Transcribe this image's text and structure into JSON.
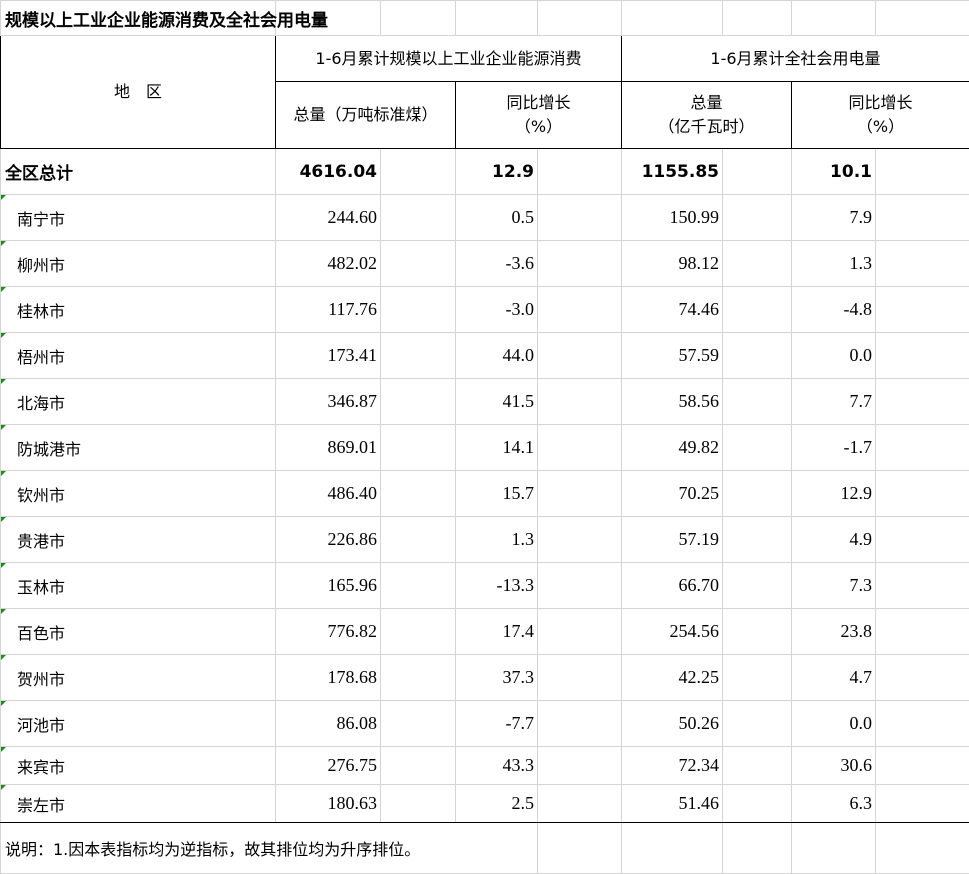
{
  "title": "规模以上工业企业能源消费及全社会用电量",
  "header": {
    "region": "地　区",
    "group_energy": "1-6月累计规模以上工业企业能源消费",
    "group_power": "1-6月累计全社会用电量",
    "energy_total": "总量（万吨标准煤）",
    "energy_growth_line1": "同比增长",
    "energy_growth_line2": "（%）",
    "power_total_line1": "总量",
    "power_total_line2": "（亿千瓦时）",
    "power_growth_line1": "同比增长",
    "power_growth_line2": "（%）"
  },
  "total": {
    "name": "全区总计",
    "energy": "4616.04",
    "energy_growth": "12.9",
    "power": "1155.85",
    "power_growth": "10.1"
  },
  "rows": [
    {
      "name": "南宁市",
      "energy": "244.60",
      "energy_growth": "0.5",
      "power": "150.99",
      "power_growth": "7.9"
    },
    {
      "name": "柳州市",
      "energy": "482.02",
      "energy_growth": "-3.6",
      "power": "98.12",
      "power_growth": "1.3"
    },
    {
      "name": "桂林市",
      "energy": "117.76",
      "energy_growth": "-3.0",
      "power": "74.46",
      "power_growth": "-4.8"
    },
    {
      "name": "梧州市",
      "energy": "173.41",
      "energy_growth": "44.0",
      "power": "57.59",
      "power_growth": "0.0"
    },
    {
      "name": "北海市",
      "energy": "346.87",
      "energy_growth": "41.5",
      "power": "58.56",
      "power_growth": "7.7"
    },
    {
      "name": "防城港市",
      "energy": "869.01",
      "energy_growth": "14.1",
      "power": "49.82",
      "power_growth": "-1.7"
    },
    {
      "name": "钦州市",
      "energy": "486.40",
      "energy_growth": "15.7",
      "power": "70.25",
      "power_growth": "12.9"
    },
    {
      "name": "贵港市",
      "energy": "226.86",
      "energy_growth": "1.3",
      "power": "57.19",
      "power_growth": "4.9"
    },
    {
      "name": "玉林市",
      "energy": "165.96",
      "energy_growth": "-13.3",
      "power": "66.70",
      "power_growth": "7.3"
    },
    {
      "name": "百色市",
      "energy": "776.82",
      "energy_growth": "17.4",
      "power": "254.56",
      "power_growth": "23.8"
    },
    {
      "name": "贺州市",
      "energy": "178.68",
      "energy_growth": "37.3",
      "power": "42.25",
      "power_growth": "4.7"
    },
    {
      "name": "河池市",
      "energy": "86.08",
      "energy_growth": "-7.7",
      "power": "50.26",
      "power_growth": "0.0"
    },
    {
      "name": "来宾市",
      "energy": "276.75",
      "energy_growth": "43.3",
      "power": "72.34",
      "power_growth": "30.6"
    },
    {
      "name": "崇左市",
      "energy": "180.63",
      "energy_growth": "2.5",
      "power": "51.46",
      "power_growth": "6.3"
    }
  ],
  "note": "说明：1.因本表指标均为逆指标，故其排位均为升序排位。",
  "colors": {
    "grid": "#d4d4d4",
    "header_border": "#000000",
    "comment_marker": "#1a8a1a"
  }
}
